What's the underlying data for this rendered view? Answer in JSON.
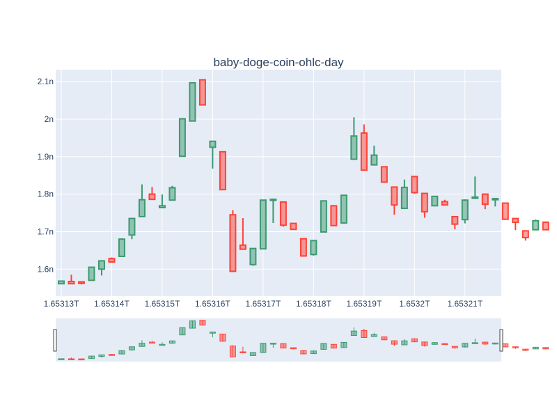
{
  "chart_data": {
    "type": "ohlc-candlestick",
    "title": "baby-doge-coin-ohlc-day",
    "xlabel": "",
    "ylabel": "",
    "x_tick_labels": [
      "1.65313T",
      "1.65314T",
      "1.65315T",
      "1.65316T",
      "1.65317T",
      "1.65318T",
      "1.65319T",
      "1.6532T",
      "1.65321T"
    ],
    "x_tick_values": [
      1.65313,
      1.65314,
      1.65315,
      1.65316,
      1.65317,
      1.65318,
      1.65319,
      1.6532,
      1.65321
    ],
    "y_tick_labels": [
      "1.6n",
      "1.7n",
      "1.8n",
      "1.9n",
      "2n",
      "2.1n"
    ],
    "y_tick_values": [
      1.6,
      1.7,
      1.8,
      1.9,
      2.0,
      2.1
    ],
    "x_unit": "T (timestamp, trillions)",
    "y_unit": "n (nano)",
    "xlim": [
      1.6531289,
      1.6532172
    ],
    "ylim": [
      1.528,
      2.132
    ],
    "grid": true,
    "increasing_color": "#3d9970",
    "decreasing_color": "#ff4136",
    "plot_background": "#e5ecf6",
    "range_slider": true,
    "candles": [
      {
        "x": 1.65313,
        "open": 1.561,
        "high": 1.568,
        "low": 1.561,
        "close": 1.568
      },
      {
        "x": 1.653132,
        "open": 1.567,
        "high": 1.585,
        "low": 1.561,
        "close": 1.561
      },
      {
        "x": 1.653134,
        "open": 1.566,
        "high": 1.567,
        "low": 1.559,
        "close": 1.562
      },
      {
        "x": 1.653136,
        "open": 1.57,
        "high": 1.605,
        "low": 1.569,
        "close": 1.605
      },
      {
        "x": 1.653138,
        "open": 1.6,
        "high": 1.624,
        "low": 1.583,
        "close": 1.622
      },
      {
        "x": 1.65314,
        "open": 1.628,
        "high": 1.631,
        "low": 1.617,
        "close": 1.619
      },
      {
        "x": 1.653142,
        "open": 1.634,
        "high": 1.682,
        "low": 1.634,
        "close": 1.68
      },
      {
        "x": 1.653144,
        "open": 1.691,
        "high": 1.737,
        "low": 1.68,
        "close": 1.735
      },
      {
        "x": 1.653146,
        "open": 1.74,
        "high": 1.826,
        "low": 1.74,
        "close": 1.785
      },
      {
        "x": 1.653148,
        "open": 1.8,
        "high": 1.819,
        "low": 1.786,
        "close": 1.786
      },
      {
        "x": 1.65315,
        "open": 1.764,
        "high": 1.799,
        "low": 1.764,
        "close": 1.769
      },
      {
        "x": 1.653152,
        "open": 1.784,
        "high": 1.822,
        "low": 1.784,
        "close": 1.817
      },
      {
        "x": 1.653154,
        "open": 1.901,
        "high": 2.002,
        "low": 1.901,
        "close": 2.001
      },
      {
        "x": 1.653156,
        "open": 1.995,
        "high": 2.098,
        "low": 1.995,
        "close": 2.097
      },
      {
        "x": 1.653158,
        "open": 2.105,
        "high": 2.105,
        "low": 2.038,
        "close": 2.038
      },
      {
        "x": 1.65316,
        "open": 1.925,
        "high": 1.942,
        "low": 1.868,
        "close": 1.941
      },
      {
        "x": 1.653162,
        "open": 1.913,
        "high": 1.913,
        "low": 1.812,
        "close": 1.812
      },
      {
        "x": 1.653164,
        "open": 1.745,
        "high": 1.757,
        "low": 1.594,
        "close": 1.594
      },
      {
        "x": 1.653166,
        "open": 1.664,
        "high": 1.736,
        "low": 1.653,
        "close": 1.653
      },
      {
        "x": 1.653168,
        "open": 1.612,
        "high": 1.656,
        "low": 1.609,
        "close": 1.655
      },
      {
        "x": 1.65317,
        "open": 1.654,
        "high": 1.784,
        "low": 1.654,
        "close": 1.784
      },
      {
        "x": 1.653172,
        "open": 1.784,
        "high": 1.788,
        "low": 1.723,
        "close": 1.786
      },
      {
        "x": 1.653174,
        "open": 1.779,
        "high": 1.779,
        "low": 1.713,
        "close": 1.717
      },
      {
        "x": 1.653176,
        "open": 1.722,
        "high": 1.722,
        "low": 1.706,
        "close": 1.706
      },
      {
        "x": 1.653178,
        "open": 1.681,
        "high": 1.681,
        "low": 1.633,
        "close": 1.635
      },
      {
        "x": 1.65318,
        "open": 1.639,
        "high": 1.677,
        "low": 1.636,
        "close": 1.676
      },
      {
        "x": 1.653182,
        "open": 1.699,
        "high": 1.783,
        "low": 1.698,
        "close": 1.782
      },
      {
        "x": 1.653184,
        "open": 1.769,
        "high": 1.769,
        "low": 1.716,
        "close": 1.716
      },
      {
        "x": 1.653186,
        "open": 1.723,
        "high": 1.798,
        "low": 1.721,
        "close": 1.797
      },
      {
        "x": 1.653188,
        "open": 1.893,
        "high": 2.005,
        "low": 1.893,
        "close": 1.955
      },
      {
        "x": 1.65319,
        "open": 1.963,
        "high": 1.986,
        "low": 1.864,
        "close": 1.864
      },
      {
        "x": 1.653192,
        "open": 1.878,
        "high": 1.929,
        "low": 1.878,
        "close": 1.904
      },
      {
        "x": 1.653194,
        "open": 1.873,
        "high": 1.873,
        "low": 1.83,
        "close": 1.832
      },
      {
        "x": 1.653196,
        "open": 1.819,
        "high": 1.819,
        "low": 1.745,
        "close": 1.771
      },
      {
        "x": 1.653198,
        "open": 1.762,
        "high": 1.839,
        "low": 1.762,
        "close": 1.818
      },
      {
        "x": 1.6532,
        "open": 1.847,
        "high": 1.847,
        "low": 1.801,
        "close": 1.804
      },
      {
        "x": 1.653202,
        "open": 1.802,
        "high": 1.802,
        "low": 1.737,
        "close": 1.753
      },
      {
        "x": 1.653204,
        "open": 1.769,
        "high": 1.795,
        "low": 1.769,
        "close": 1.794
      },
      {
        "x": 1.653206,
        "open": 1.78,
        "high": 1.785,
        "low": 1.771,
        "close": 1.771
      },
      {
        "x": 1.653208,
        "open": 1.74,
        "high": 1.74,
        "low": 1.706,
        "close": 1.72
      },
      {
        "x": 1.65321,
        "open": 1.732,
        "high": 1.786,
        "low": 1.722,
        "close": 1.784
      },
      {
        "x": 1.653212,
        "open": 1.789,
        "high": 1.847,
        "low": 1.789,
        "close": 1.792
      },
      {
        "x": 1.653214,
        "open": 1.8,
        "high": 1.8,
        "low": 1.76,
        "close": 1.773
      },
      {
        "x": 1.653216,
        "open": 1.785,
        "high": 1.789,
        "low": 1.767,
        "close": 1.788
      },
      {
        "x": 1.653218,
        "open": 1.776,
        "high": 1.776,
        "low": 1.733,
        "close": 1.733
      },
      {
        "x": 1.65322,
        "open": 1.735,
        "high": 1.735,
        "low": 1.704,
        "close": 1.725
      },
      {
        "x": 1.653222,
        "open": 1.702,
        "high": 1.702,
        "low": 1.676,
        "close": 1.684
      },
      {
        "x": 1.653224,
        "open": 1.705,
        "high": 1.732,
        "low": 1.705,
        "close": 1.729
      },
      {
        "x": 1.653226,
        "open": 1.725,
        "high": 1.725,
        "low": 1.705,
        "close": 1.705
      }
    ]
  }
}
